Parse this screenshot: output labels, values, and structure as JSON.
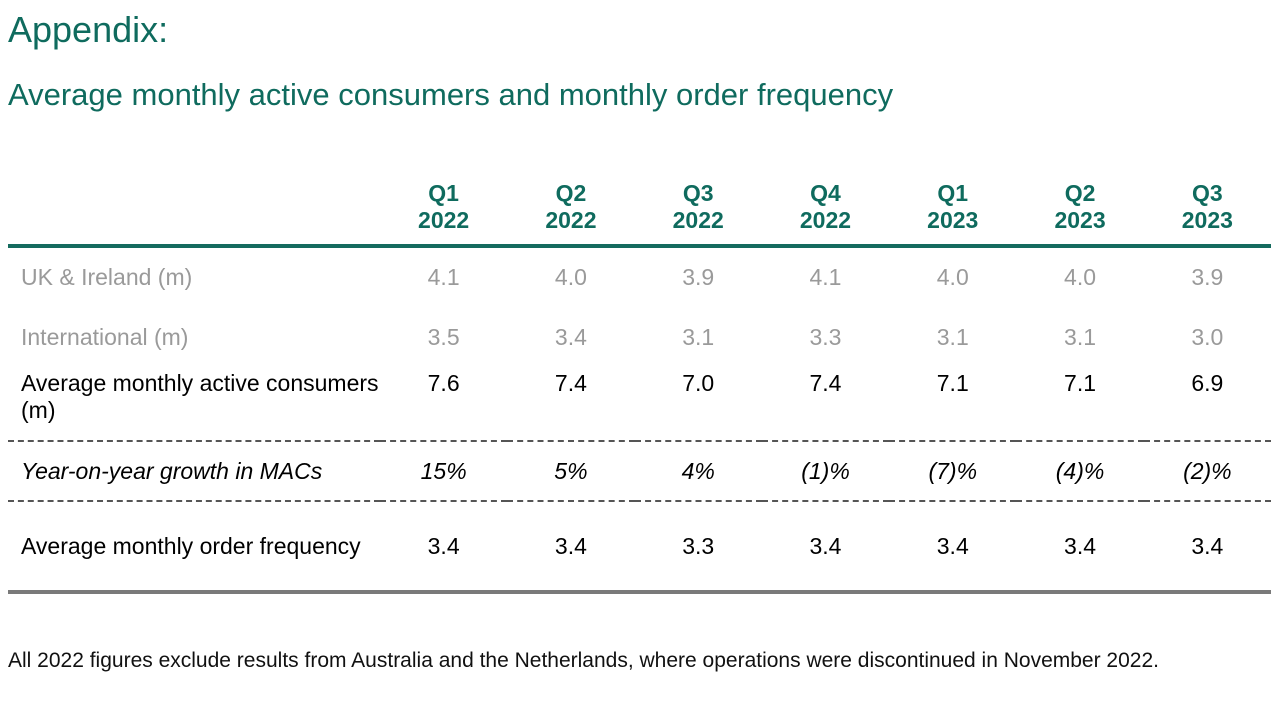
{
  "page": {
    "title": "Appendix:",
    "subtitle": "Average monthly active consumers and monthly order frequency"
  },
  "table": {
    "columns": [
      {
        "quarter": "Q1",
        "year": "2022"
      },
      {
        "quarter": "Q2",
        "year": "2022"
      },
      {
        "quarter": "Q3",
        "year": "2022"
      },
      {
        "quarter": "Q4",
        "year": "2022"
      },
      {
        "quarter": "Q1",
        "year": "2023"
      },
      {
        "quarter": "Q2",
        "year": "2023"
      },
      {
        "quarter": "Q3",
        "year": "2023"
      }
    ],
    "rows": [
      {
        "key": "uk",
        "label": "UK & Ireland (m)",
        "values": [
          "4.1",
          "4.0",
          "3.9",
          "4.1",
          "4.0",
          "4.0",
          "3.9"
        ]
      },
      {
        "key": "intl",
        "label": "International (m)",
        "values": [
          "3.5",
          "3.4",
          "3.1",
          "3.3",
          "3.1",
          "3.1",
          "3.0"
        ]
      },
      {
        "key": "mac",
        "label": "Average monthly active consumers (m)",
        "values": [
          "7.6",
          "7.4",
          "7.0",
          "7.4",
          "7.1",
          "7.1",
          "6.9"
        ]
      },
      {
        "key": "growth",
        "label": "Year-on-year growth in MACs",
        "values": [
          "15%",
          "5%",
          "4%",
          "(1)%",
          "(7)%",
          "(4)%",
          "(2)%"
        ]
      },
      {
        "key": "freq",
        "label": "Average monthly order frequency",
        "values": [
          "3.4",
          "3.4",
          "3.3",
          "3.4",
          "3.4",
          "3.4",
          "3.4"
        ]
      }
    ]
  },
  "footnote": "All 2022 figures exclude results from Australia and the Netherlands, where operations were discontinued in November 2022.",
  "colors": {
    "accent": "#0f6b5e",
    "muted_text": "#9a9a9a"
  }
}
